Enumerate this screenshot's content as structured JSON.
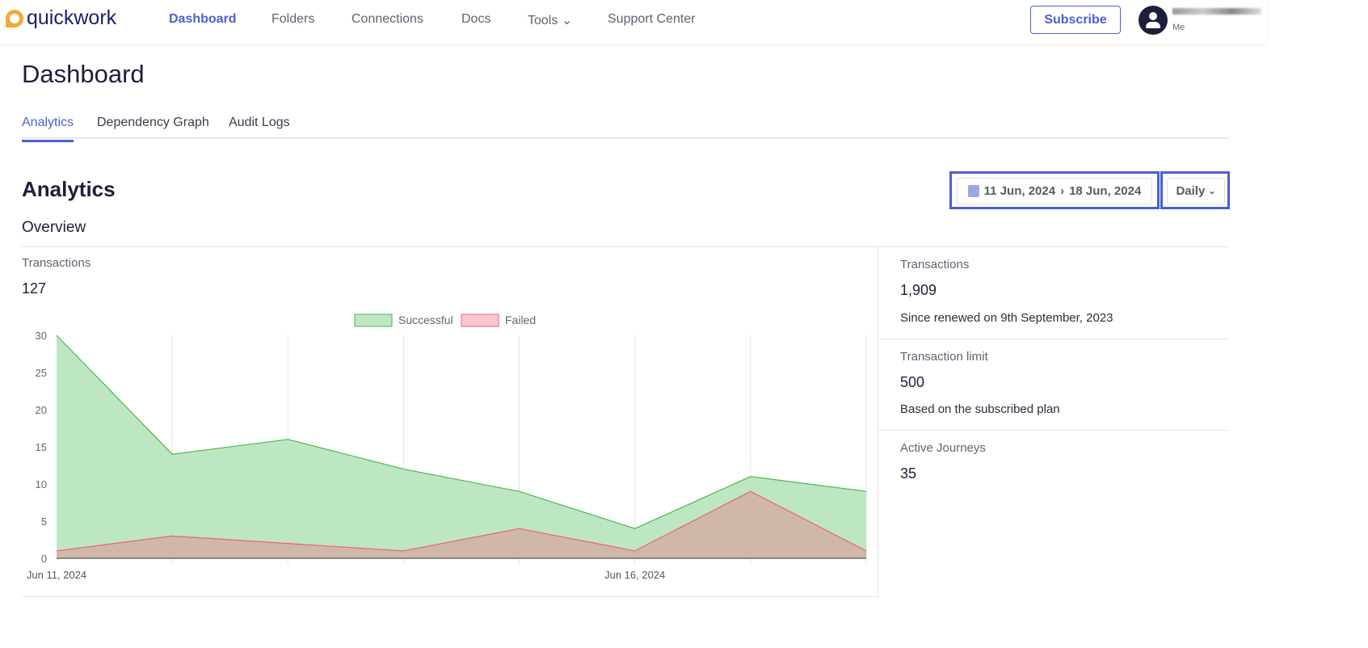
{
  "nav": {
    "logo": "quickwork",
    "items": [
      "Dashboard",
      "Folders",
      "Connections",
      "Docs",
      "Tools",
      "Support Center"
    ],
    "subscribe": "Subscribe",
    "user_sub": "Me"
  },
  "page_title": "Dashboard",
  "tabs": [
    "Analytics",
    "Dependency Graph",
    "Audit Logs"
  ],
  "section_title": "Analytics",
  "date_range": {
    "start": "11 Jun, 2024",
    "sep": "›",
    "end": "18 Jun, 2024"
  },
  "interval": "Daily",
  "overview": "Overview",
  "chart_card": {
    "label": "Transactions",
    "value": "127"
  },
  "stats": [
    {
      "label": "Transactions",
      "value": "1,909",
      "note": "Since renewed on 9th September, 2023"
    },
    {
      "label": "Transaction limit",
      "value": "500",
      "note": "Based on the subscribed plan"
    },
    {
      "label": "Active Journeys",
      "value": "35"
    }
  ],
  "chart_data": {
    "type": "area",
    "x": [
      "Jun 11, 2024",
      "Jun 12, 2024",
      "Jun 13, 2024",
      "Jun 14, 2024",
      "Jun 15, 2024",
      "Jun 16, 2024",
      "Jun 17, 2024",
      "Jun 18, 2024"
    ],
    "xtick_labels": [
      "Jun 11, 2024",
      "Jun 16, 2024"
    ],
    "yticks": [
      0,
      5,
      10,
      15,
      20,
      25,
      30
    ],
    "ylim": [
      0,
      30
    ],
    "legend": "top-center",
    "series": [
      {
        "name": "Successful",
        "values": [
          30,
          14,
          16,
          12,
          9,
          4,
          11,
          9
        ],
        "color": "#4cb84c",
        "fill": "#bde7c2"
      },
      {
        "name": "Failed",
        "values": [
          1,
          3,
          2,
          1,
          4,
          1,
          9,
          1
        ],
        "color": "#f0607a",
        "fill": "rgba(240,96,122,0.35)"
      }
    ]
  }
}
